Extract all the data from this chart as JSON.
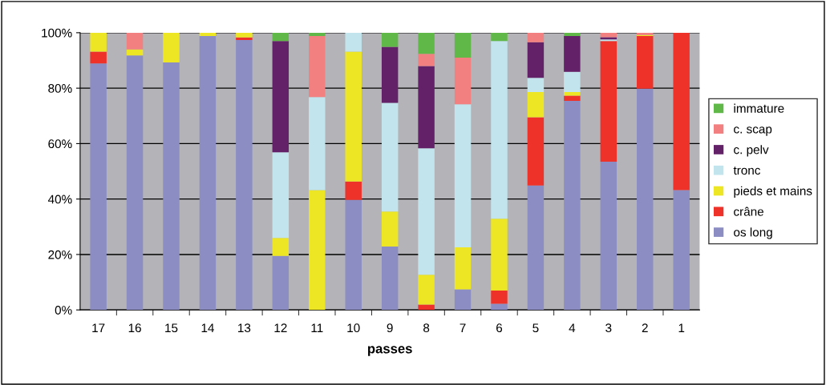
{
  "chart_data": {
    "type": "bar",
    "stacked": true,
    "xlabel": "passes",
    "categories": [
      "17",
      "16",
      "15",
      "14",
      "13",
      "12",
      "11",
      "10",
      "9",
      "8",
      "7",
      "6",
      "5",
      "4",
      "3",
      "2",
      "1"
    ],
    "series": [
      {
        "name": "os long",
        "color": "#8b8dc3",
        "values": [
          88.9,
          91.8,
          89.3,
          98.8,
          97.4,
          19.5,
          0,
          39.7,
          22.9,
          0,
          7.4,
          2.2,
          44.9,
          75.4,
          53.5,
          79.8,
          43.2
        ]
      },
      {
        "name": "crâne",
        "color": "#ee3129",
        "values": [
          4.3,
          0,
          0,
          0,
          0.9,
          0,
          0,
          6.6,
          0,
          1.9,
          0,
          4.8,
          24.6,
          1.9,
          43.5,
          19.0,
          56.8
        ]
      },
      {
        "name": "pieds et mains",
        "color": "#ece625",
        "values": [
          6.8,
          2.2,
          10.7,
          1.2,
          1.7,
          6.5,
          43.2,
          46.9,
          12.6,
          10.8,
          15.2,
          25.9,
          9.1,
          1.3,
          0,
          0.4,
          0
        ]
      },
      {
        "name": "tronc",
        "color": "#c2e5ed",
        "values": [
          0,
          0,
          0,
          0,
          0,
          30.9,
          33.6,
          6.8,
          39.2,
          45.6,
          51.6,
          64.1,
          5.1,
          7.3,
          0.6,
          0,
          0
        ]
      },
      {
        "name": "c. pelv",
        "color": "#632267",
        "values": [
          0,
          0,
          0,
          0,
          0,
          40.1,
          0,
          0,
          20.2,
          29.7,
          0,
          0,
          12.9,
          12.9,
          0.8,
          0,
          0
        ]
      },
      {
        "name": "c. scap",
        "color": "#f28080",
        "values": [
          0,
          6.0,
          0,
          0,
          0,
          0,
          22.0,
          0,
          0,
          4.4,
          16.8,
          0,
          3.4,
          0,
          1.6,
          0.8,
          0
        ]
      },
      {
        "name": "immature",
        "color": "#5fb847",
        "values": [
          0,
          0,
          0,
          0,
          0,
          3.0,
          1.2,
          0,
          5.1,
          7.6,
          9.0,
          3.0,
          0,
          1.2,
          0,
          0,
          0
        ]
      }
    ],
    "ylim": [
      0,
      100
    ],
    "yticks": [
      {
        "value": 0,
        "label": "0%"
      },
      {
        "value": 20,
        "label": "20%"
      },
      {
        "value": 40,
        "label": "40%"
      },
      {
        "value": 60,
        "label": "60%"
      },
      {
        "value": 80,
        "label": "80%"
      },
      {
        "value": 100,
        "label": "100%"
      }
    ],
    "grid": "y",
    "legend": "right"
  }
}
